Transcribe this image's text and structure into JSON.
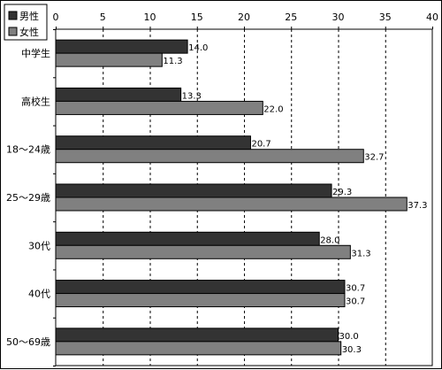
{
  "chart_data": {
    "type": "bar",
    "orientation": "horizontal",
    "categories": [
      "中学生",
      "高校生",
      "18〜24歳",
      "25〜29歳",
      "30代",
      "40代",
      "50〜69歳"
    ],
    "series": [
      {
        "name": "男性",
        "color": "#333333",
        "values": [
          14.0,
          13.3,
          20.7,
          29.3,
          28.0,
          30.7,
          30.0
        ],
        "labels": [
          "14.0",
          "13.3",
          "20.7",
          "29.3",
          "28.0",
          "30.7",
          "30.0"
        ]
      },
      {
        "name": "女性",
        "color": "#808080",
        "values": [
          11.3,
          22.0,
          32.7,
          37.3,
          31.3,
          30.7,
          30.3
        ],
        "labels": [
          "11.3",
          "22.0",
          "32.7",
          "37.3",
          "31.3",
          "30.7",
          "30.3"
        ]
      }
    ],
    "xlim": [
      0,
      40
    ],
    "xticks": [
      0,
      5,
      10,
      15,
      20,
      25,
      30,
      35,
      40
    ],
    "xtick_labels": [
      "0",
      "5",
      "10",
      "15",
      "20",
      "25",
      "30",
      "35",
      "40"
    ],
    "grid": "vertical dashed",
    "legend": "top-left",
    "title": "",
    "xlabel": "",
    "ylabel": ""
  }
}
